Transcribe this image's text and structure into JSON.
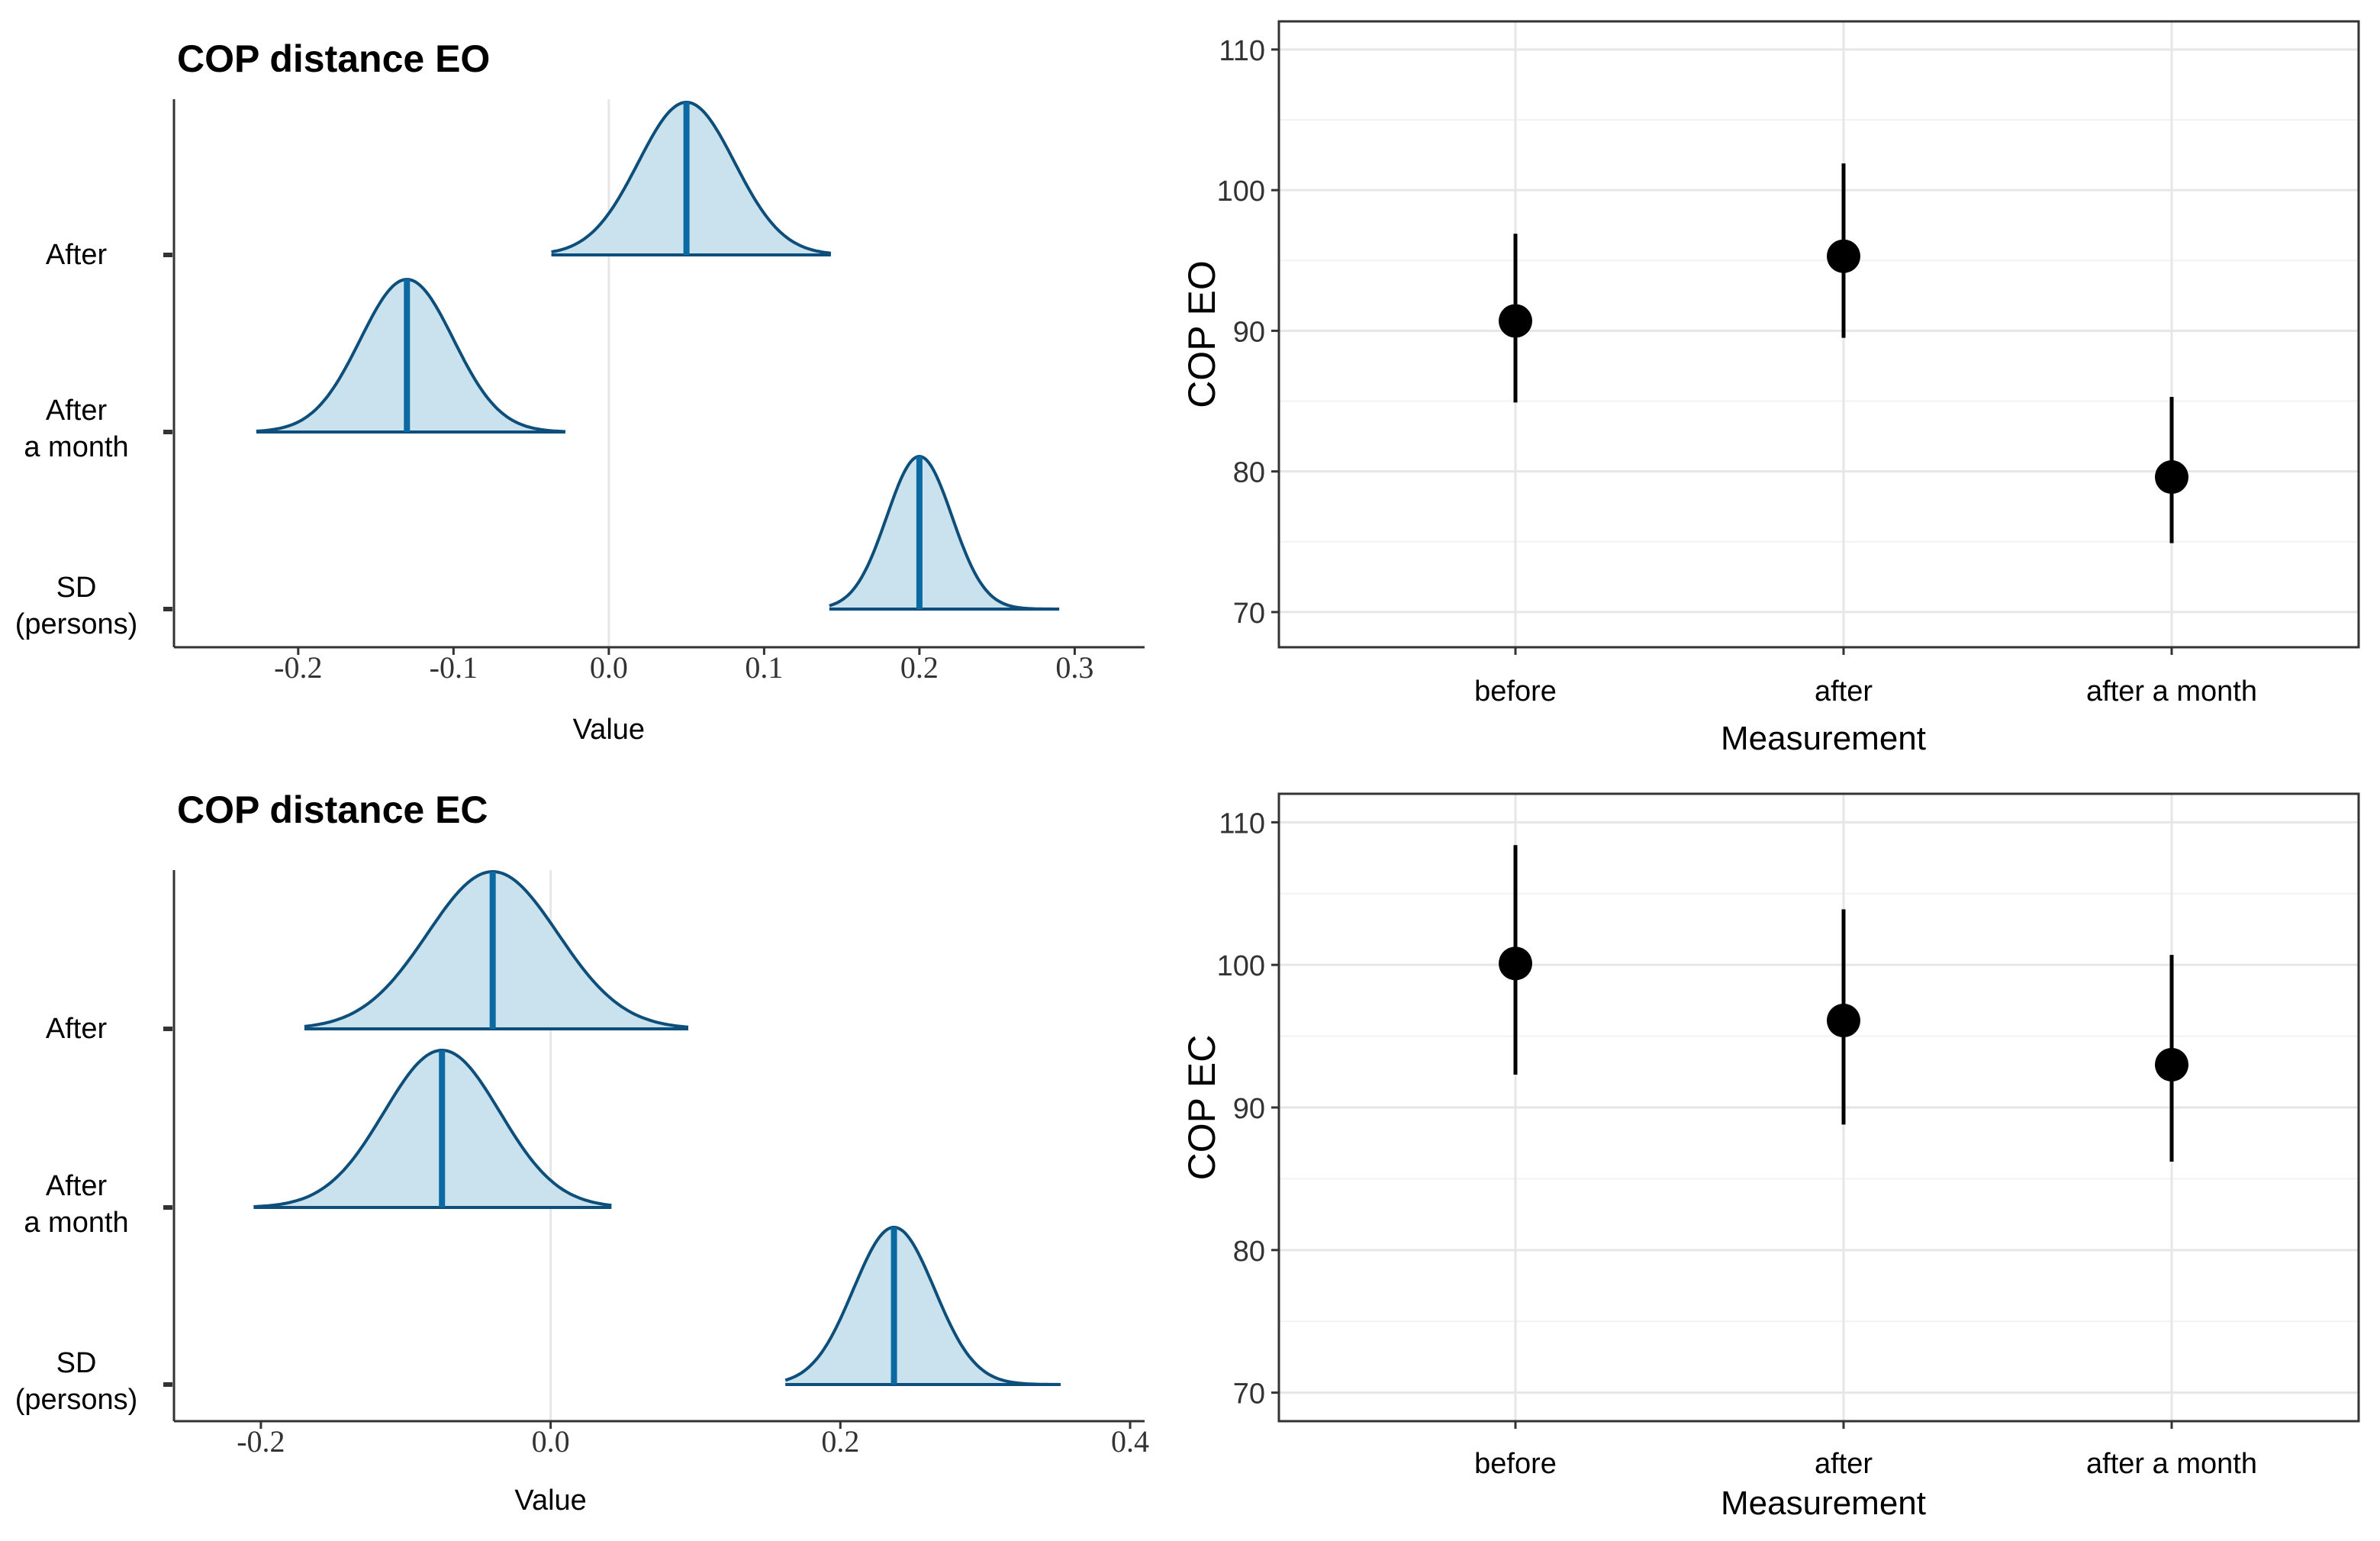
{
  "colors": {
    "density_fill": "#c9e2ee",
    "density_line": "#0d4f7a",
    "median_line": "#0a6aa1",
    "point": "#000000",
    "grid": "#e6e6e6",
    "zero_line": "#e6e6e6",
    "axis": "#333333",
    "text": "#000000",
    "tick_text": "#333333"
  },
  "chart_data": [
    {
      "type": "density",
      "title": "COP distance EO",
      "xlabel": "Value",
      "xlim": [
        -0.28,
        0.345
      ],
      "xticks": [
        -0.2,
        -0.1,
        0.0,
        0.1,
        0.2,
        0.3
      ],
      "xtick_labels": [
        "-0.2",
        "-0.1",
        "0.0",
        "0.1",
        "0.2",
        "0.3"
      ],
      "reference_line": 0.0,
      "rows": [
        {
          "label": [
            "After"
          ],
          "median": 0.05,
          "sd": 0.031,
          "min": -0.037,
          "max": 0.143
        },
        {
          "label": [
            "After",
            "a month"
          ],
          "median": -0.13,
          "sd": 0.03,
          "min": -0.227,
          "max": -0.028
        },
        {
          "label": [
            "SD",
            "(persons)"
          ],
          "median": 0.2,
          "sd": 0.021,
          "min": 0.142,
          "max": 0.29
        }
      ]
    },
    {
      "type": "density",
      "title": "COP distance EC",
      "xlabel": "Value",
      "xlim": [
        -0.26,
        0.41
      ],
      "xticks": [
        -0.2,
        0.0,
        0.2,
        0.4
      ],
      "xtick_labels": [
        "-0.2",
        "0.0",
        "0.2",
        "0.4"
      ],
      "reference_line": 0.0,
      "rows": [
        {
          "label": [
            "After"
          ],
          "median": -0.04,
          "sd": 0.045,
          "min": -0.17,
          "max": 0.095
        },
        {
          "label": [
            "After",
            "a month"
          ],
          "median": -0.075,
          "sd": 0.04,
          "min": -0.205,
          "max": 0.042
        },
        {
          "label": [
            "SD",
            "(persons)"
          ],
          "median": 0.237,
          "sd": 0.028,
          "min": 0.162,
          "max": 0.352
        }
      ]
    },
    {
      "type": "errorbar",
      "xlabel": "Measurement",
      "ylabel": "COP EO",
      "ylim": [
        67.5,
        112
      ],
      "yticks": [
        70,
        80,
        90,
        100,
        110
      ],
      "ytick_labels": [
        "70",
        "80",
        "90",
        "100",
        "110"
      ],
      "categories": [
        "before",
        "after",
        "after a month"
      ],
      "values": [
        90.7,
        95.3,
        79.6
      ],
      "lower": [
        84.9,
        89.5,
        74.9
      ],
      "upper": [
        96.9,
        101.9,
        85.3
      ]
    },
    {
      "type": "errorbar",
      "xlabel": "Measurement",
      "ylabel": "COP EC",
      "ylim": [
        68,
        112
      ],
      "yticks": [
        70,
        80,
        90,
        100,
        110
      ],
      "ytick_labels": [
        "70",
        "80",
        "90",
        "100",
        "110"
      ],
      "categories": [
        "before",
        "after",
        "after a month"
      ],
      "values": [
        100.1,
        96.1,
        93.0
      ],
      "lower": [
        92.3,
        88.8,
        86.2
      ],
      "upper": [
        108.4,
        103.9,
        100.7
      ]
    }
  ]
}
